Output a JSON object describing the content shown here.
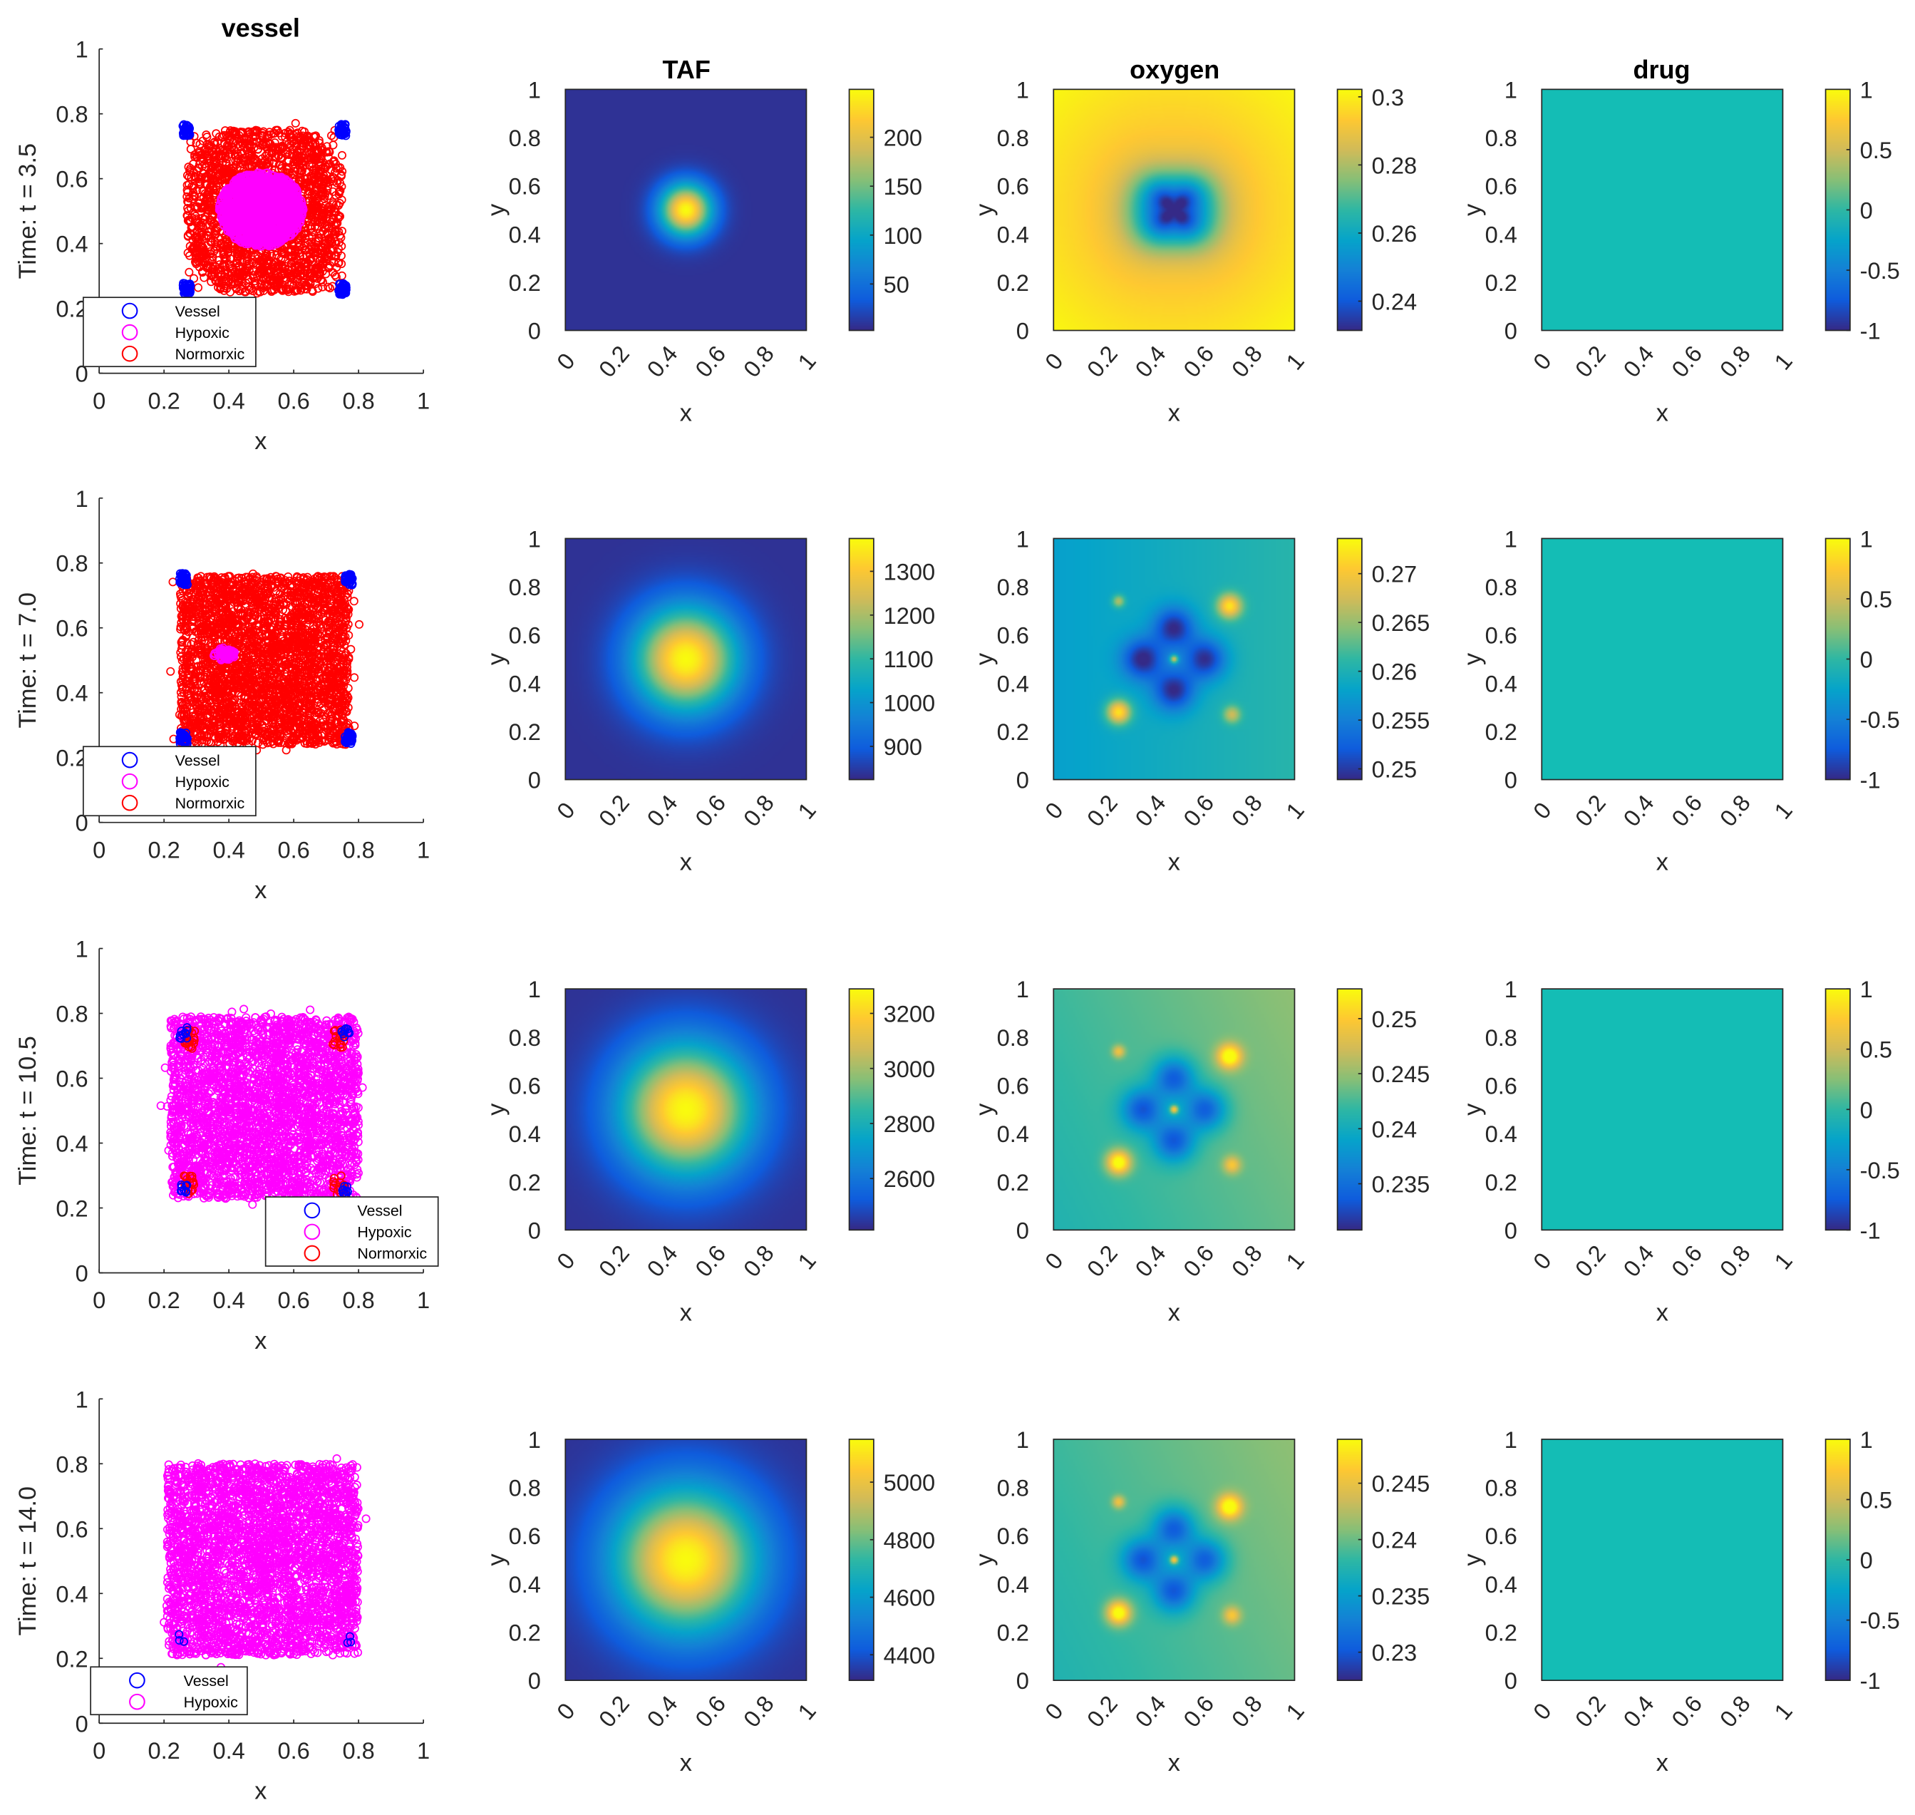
{
  "column_titles": {
    "vessel": "vessel",
    "taf": "TAF",
    "oxygen": "oxygen",
    "drug": "drug"
  },
  "axis_labels": {
    "x": "x",
    "y": "y"
  },
  "axis_ticks": [
    "0",
    "0.2",
    "0.4",
    "0.6",
    "0.8",
    "1"
  ],
  "colors": {
    "vessel": "#0000ff",
    "hypoxic": "#ff00ff",
    "normoxic": "#ff0000",
    "drug_field": "#14bdb5"
  },
  "chart_data": [
    {
      "row_label": "Time: t = 3.5",
      "vessel": {
        "type": "scatter",
        "xlim": [
          0,
          1
        ],
        "ylim": [
          0,
          1
        ],
        "legend": [
          "Vessel",
          "Hypoxic",
          "Normorxic"
        ],
        "legend_placement": "bottom-left",
        "populations": [
          {
            "name": "Normorxic",
            "color": "#ff0000",
            "shape": "blob",
            "x": [
              0.27,
              0.75
            ],
            "y": [
              0.25,
              0.75
            ],
            "count": 2200
          },
          {
            "name": "Hypoxic",
            "color": "#ff00ff",
            "shape": "ellipse",
            "x": [
              0.37,
              0.63
            ],
            "y": [
              0.39,
              0.62
            ],
            "count": 1500
          },
          {
            "name": "Vessel",
            "color": "#0000ff",
            "shape": "corners",
            "x": [
              0.27,
              0.75
            ],
            "y": [
              0.26,
              0.75
            ],
            "count": 160
          }
        ]
      },
      "taf": {
        "type": "heatmap",
        "colorbar_ticks": [
          "50",
          "100",
          "150",
          "200"
        ],
        "colorbar_values": [
          50,
          100,
          150,
          200
        ],
        "clim": [
          2.5,
          249
        ],
        "peak": [
          0.5,
          0.5
        ]
      },
      "oxygen": {
        "type": "heatmap",
        "colorbar_ticks": [
          "0.24",
          "0.26",
          "0.28",
          "0.3"
        ],
        "colorbar_values": [
          0.24,
          0.26,
          0.28,
          0.3
        ],
        "clim": [
          0.2314,
          0.3022
        ]
      },
      "drug": {
        "type": "heatmap",
        "colorbar_ticks": [
          "-1",
          "-0.5",
          "0",
          "0.5",
          "1"
        ],
        "colorbar_values": [
          -1,
          -0.5,
          0,
          0.5,
          1
        ],
        "clim": [
          -1,
          1
        ],
        "value": 0
      }
    },
    {
      "row_label": "Time: t = 7.0",
      "vessel": {
        "type": "scatter",
        "xlim": [
          0,
          1
        ],
        "ylim": [
          0,
          1
        ],
        "legend": [
          "Vessel",
          "Hypoxic",
          "Normorxic"
        ],
        "legend_placement": "bottom-left",
        "populations": [
          {
            "name": "Normorxic",
            "color": "#ff0000",
            "shape": "square",
            "x": [
              0.25,
              0.77
            ],
            "y": [
              0.24,
              0.76
            ],
            "count": 3000
          },
          {
            "name": "Hypoxic",
            "color": "#ff00ff",
            "shape": "ellipse",
            "x": [
              0.35,
              0.42
            ],
            "y": [
              0.5,
              0.54
            ],
            "count": 60
          },
          {
            "name": "Vessel",
            "color": "#0000ff",
            "shape": "corners",
            "x": [
              0.26,
              0.77
            ],
            "y": [
              0.26,
              0.75
            ],
            "count": 160
          }
        ]
      },
      "taf": {
        "type": "heatmap",
        "colorbar_ticks": [
          "900",
          "1000",
          "1100",
          "1200",
          "1300"
        ],
        "colorbar_values": [
          900,
          1000,
          1100,
          1200,
          1300
        ],
        "clim": [
          824,
          1375
        ],
        "peak": [
          0.5,
          0.5
        ]
      },
      "oxygen": {
        "type": "heatmap",
        "colorbar_ticks": [
          "0.25",
          "0.255",
          "0.26",
          "0.265",
          "0.27"
        ],
        "colorbar_values": [
          0.25,
          0.255,
          0.26,
          0.265,
          0.27
        ],
        "clim": [
          0.2489,
          0.2736
        ]
      },
      "drug": {
        "type": "heatmap",
        "colorbar_ticks": [
          "-1",
          "-0.5",
          "0",
          "0.5",
          "1"
        ],
        "colorbar_values": [
          -1,
          -0.5,
          0,
          0.5,
          1
        ],
        "clim": [
          -1,
          1
        ],
        "value": 0
      }
    },
    {
      "row_label": "Time: t = 10.5",
      "vessel": {
        "type": "scatter",
        "xlim": [
          0,
          1
        ],
        "ylim": [
          0,
          1
        ],
        "legend": [
          "Vessel",
          "Hypoxic",
          "Normorxic"
        ],
        "legend_placement": "bottom-right",
        "populations": [
          {
            "name": "Hypoxic",
            "color": "#ff00ff",
            "shape": "square",
            "x": [
              0.22,
              0.8
            ],
            "y": [
              0.23,
              0.79
            ],
            "count": 3200
          },
          {
            "name": "Normorxic",
            "color": "#ff0000",
            "shape": "spots",
            "x": [
              0.28,
              0.74
            ],
            "y": [
              0.27,
              0.72
            ],
            "count": 80
          },
          {
            "name": "Vessel",
            "color": "#0000ff",
            "shape": "corners",
            "x": [
              0.26,
              0.76
            ],
            "y": [
              0.26,
              0.74
            ],
            "count": 40
          }
        ]
      },
      "taf": {
        "type": "heatmap",
        "colorbar_ticks": [
          "2600",
          "2800",
          "3000",
          "3200"
        ],
        "colorbar_values": [
          2600,
          2800,
          3000,
          3200
        ],
        "clim": [
          2413,
          3289
        ],
        "peak": [
          0.5,
          0.5
        ]
      },
      "oxygen": {
        "type": "heatmap",
        "colorbar_ticks": [
          "0.235",
          "0.24",
          "0.245",
          "0.25"
        ],
        "colorbar_values": [
          0.235,
          0.24,
          0.245,
          0.25
        ],
        "clim": [
          0.2308,
          0.2527
        ]
      },
      "drug": {
        "type": "heatmap",
        "colorbar_ticks": [
          "-1",
          "-0.5",
          "0",
          "0.5",
          "1"
        ],
        "colorbar_values": [
          -1,
          -0.5,
          0,
          0.5,
          1
        ],
        "clim": [
          -1,
          1
        ],
        "value": 0
      }
    },
    {
      "row_label": "Time: t = 14.0",
      "vessel": {
        "type": "scatter",
        "xlim": [
          0,
          1
        ],
        "ylim": [
          0,
          1
        ],
        "legend": [
          "Vessel",
          "Hypoxic"
        ],
        "legend_placement": "bottom-left",
        "populations": [
          {
            "name": "Hypoxic",
            "color": "#ff00ff",
            "shape": "square",
            "x": [
              0.21,
              0.8
            ],
            "y": [
              0.21,
              0.8
            ],
            "count": 3400
          },
          {
            "name": "Vessel",
            "color": "#0000ff",
            "shape": "corners",
            "x": [
              0.25,
              0.77
            ],
            "y": [
              0.26,
              0.26
            ],
            "count": 6
          }
        ]
      },
      "taf": {
        "type": "heatmap",
        "colorbar_ticks": [
          "4400",
          "4600",
          "4800",
          "5000"
        ],
        "colorbar_values": [
          4400,
          4600,
          4800,
          5000
        ],
        "clim": [
          4311,
          5149
        ],
        "peak": [
          0.5,
          0.5
        ]
      },
      "oxygen": {
        "type": "heatmap",
        "colorbar_ticks": [
          "0.23",
          "0.235",
          "0.24",
          "0.245"
        ],
        "colorbar_values": [
          0.23,
          0.235,
          0.24,
          0.245
        ],
        "clim": [
          0.2275,
          0.2489
        ]
      },
      "drug": {
        "type": "heatmap",
        "colorbar_ticks": [
          "-1",
          "-0.5",
          "0",
          "0.5",
          "1"
        ],
        "colorbar_values": [
          -1,
          -0.5,
          0,
          0.5,
          1
        ],
        "clim": [
          -1,
          1
        ],
        "value": 0
      }
    }
  ]
}
